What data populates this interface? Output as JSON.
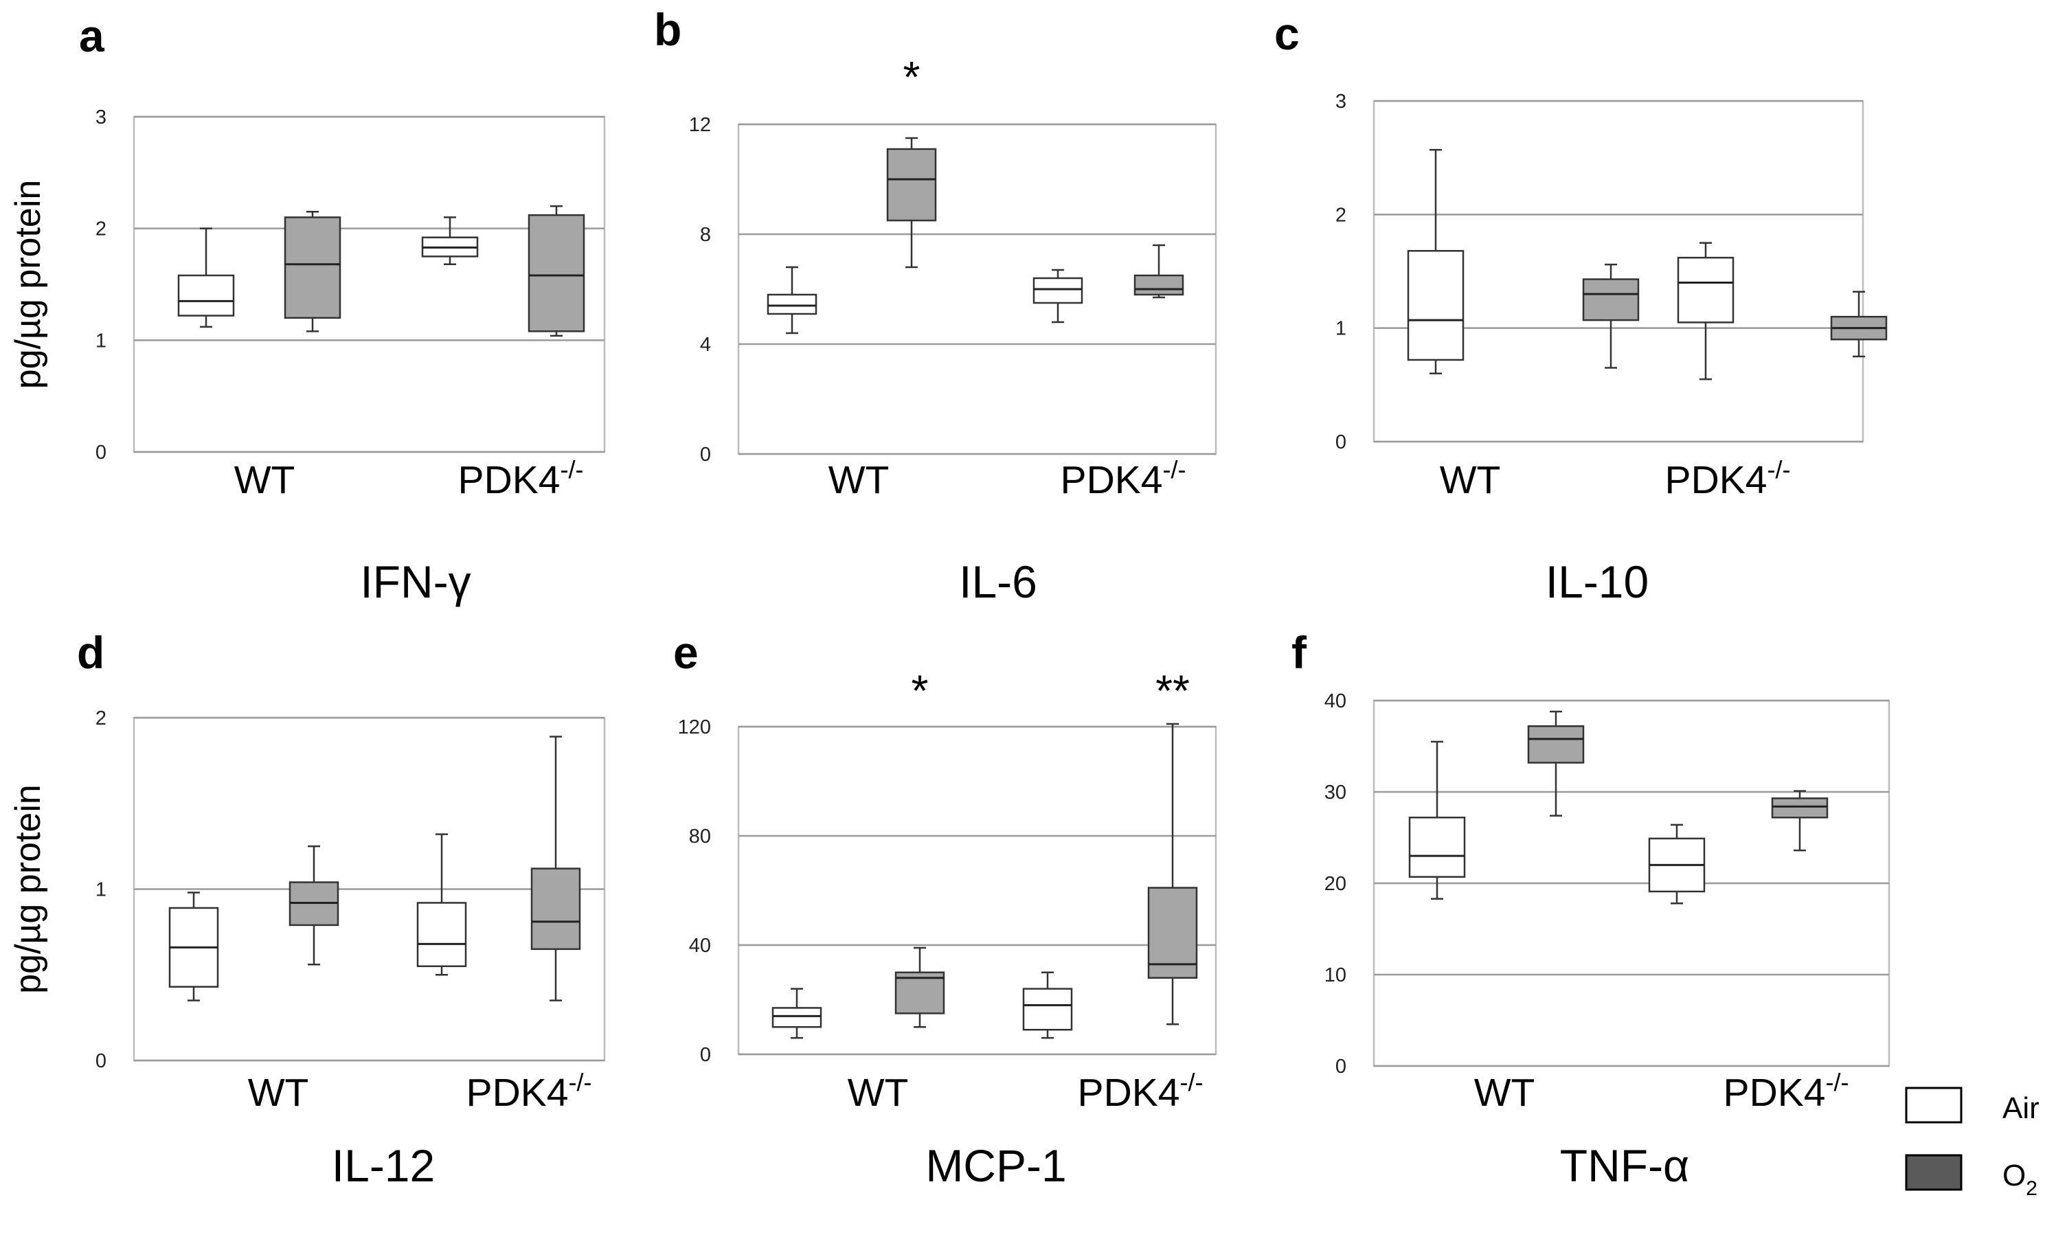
{
  "legend": [
    {
      "label": "Air",
      "color": "#ffffff"
    },
    {
      "label": "O",
      "sub": "2",
      "color": "#5a5a5a"
    }
  ],
  "box_fill_colors": {
    "Air": "#ffffff",
    "O2": "#a6a6a6"
  },
  "ylabel": "pg/µg protein",
  "chart_data": [
    {
      "type": "boxplot",
      "letter": "a",
      "title": "IFN-γ",
      "ylim": [
        0,
        3
      ],
      "yticks": [
        "0",
        "1",
        "2",
        "3"
      ],
      "categories": [
        {
          "label": "WT"
        },
        {
          "label": "PDK4",
          "sup": "-/-"
        }
      ],
      "groups": [
        "Air",
        "O2"
      ],
      "grid": true,
      "legend_position": "none",
      "boxes": [
        {
          "category": "WT",
          "group": "Air",
          "min": 1.12,
          "q1": 1.22,
          "median": 1.35,
          "q3": 1.58,
          "max": 2.0
        },
        {
          "category": "WT",
          "group": "O2",
          "min": 1.08,
          "q1": 1.2,
          "median": 1.68,
          "q3": 2.1,
          "max": 2.15
        },
        {
          "category": "PDK4-/-",
          "group": "Air",
          "min": 1.68,
          "q1": 1.75,
          "median": 1.83,
          "q3": 1.92,
          "max": 2.1
        },
        {
          "category": "PDK4-/-",
          "group": "O2",
          "min": 1.04,
          "q1": 1.08,
          "median": 1.58,
          "q3": 2.12,
          "max": 2.2
        }
      ],
      "significance": []
    },
    {
      "type": "boxplot",
      "letter": "b",
      "title": "IL-6",
      "ylim": [
        0,
        12
      ],
      "yticks": [
        "0",
        "4",
        "8",
        "12"
      ],
      "categories": [
        {
          "label": "WT"
        },
        {
          "label": "PDK4",
          "sup": "-/-"
        }
      ],
      "groups": [
        "Air",
        "O2"
      ],
      "grid": true,
      "legend_position": "none",
      "boxes": [
        {
          "category": "WT",
          "group": "Air",
          "min": 4.4,
          "q1": 5.1,
          "median": 5.4,
          "q3": 5.8,
          "max": 6.8
        },
        {
          "category": "WT",
          "group": "O2",
          "min": 6.8,
          "q1": 8.5,
          "median": 10.0,
          "q3": 11.1,
          "max": 11.5
        },
        {
          "category": "PDK4-/-",
          "group": "Air",
          "min": 4.8,
          "q1": 5.5,
          "median": 6.0,
          "q3": 6.4,
          "max": 6.7
        },
        {
          "category": "PDK4-/-",
          "group": "O2",
          "min": 5.7,
          "q1": 5.8,
          "median": 6.0,
          "q3": 6.5,
          "max": 7.6
        }
      ],
      "significance": [
        {
          "category": "WT",
          "group": "O2",
          "text": "*",
          "y": 13.8
        }
      ]
    },
    {
      "type": "boxplot",
      "letter": "c",
      "title": "IL-10",
      "ylim": [
        0,
        3
      ],
      "yticks": [
        "0",
        "1",
        "2",
        "3"
      ],
      "categories": [
        {
          "label": "WT"
        },
        {
          "label": "PDK4",
          "sup": "-/-"
        }
      ],
      "groups": [
        "Air",
        "O2"
      ],
      "grid": true,
      "legend_position": "none",
      "boxes": [
        {
          "category": "WT",
          "group": "Air",
          "min": 0.6,
          "q1": 0.72,
          "median": 1.07,
          "q3": 1.68,
          "max": 2.57
        },
        {
          "category": "WT",
          "group": "O2",
          "min": 0.65,
          "q1": 1.07,
          "median": 1.3,
          "q3": 1.43,
          "max": 1.56
        },
        {
          "category": "PDK4-/-",
          "group": "Air",
          "min": 0.55,
          "q1": 1.05,
          "median": 1.4,
          "q3": 1.62,
          "max": 1.75
        },
        {
          "category": "PDK4-/-",
          "group": "O2",
          "min": 0.75,
          "q1": 0.9,
          "median": 1.0,
          "q3": 1.1,
          "max": 1.32
        }
      ],
      "significance": []
    },
    {
      "type": "boxplot",
      "letter": "d",
      "title": "IL-12",
      "ylim": [
        0,
        2
      ],
      "yticks": [
        "0",
        "1",
        "2"
      ],
      "categories": [
        {
          "label": "WT"
        },
        {
          "label": "PDK4",
          "sup": "-/-"
        }
      ],
      "groups": [
        "Air",
        "O2"
      ],
      "grid": true,
      "legend_position": "none",
      "boxes": [
        {
          "category": "WT",
          "group": "Air",
          "min": 0.35,
          "q1": 0.43,
          "median": 0.66,
          "q3": 0.89,
          "max": 0.98
        },
        {
          "category": "WT",
          "group": "O2",
          "min": 0.56,
          "q1": 0.79,
          "median": 0.92,
          "q3": 1.04,
          "max": 1.25
        },
        {
          "category": "PDK4-/-",
          "group": "Air",
          "min": 0.5,
          "q1": 0.55,
          "median": 0.68,
          "q3": 0.92,
          "max": 1.32
        },
        {
          "category": "PDK4-/-",
          "group": "O2",
          "min": 0.35,
          "q1": 0.65,
          "median": 0.81,
          "q3": 1.12,
          "max": 1.89
        }
      ],
      "significance": []
    },
    {
      "type": "boxplot",
      "letter": "e",
      "title": "MCP-1",
      "ylim": [
        0,
        120
      ],
      "yticks": [
        "0",
        "40",
        "80",
        "120"
      ],
      "categories": [
        {
          "label": "WT"
        },
        {
          "label": "PDK4",
          "sup": "-/-"
        }
      ],
      "groups": [
        "Air",
        "O2"
      ],
      "grid": true,
      "legend_position": "none",
      "boxes": [
        {
          "category": "WT",
          "group": "Air",
          "min": 6,
          "q1": 10,
          "median": 14,
          "q3": 17,
          "max": 24
        },
        {
          "category": "WT",
          "group": "O2",
          "min": 10,
          "q1": 15,
          "median": 28,
          "q3": 30,
          "max": 39
        },
        {
          "category": "PDK4-/-",
          "group": "Air",
          "min": 6,
          "q1": 9,
          "median": 18,
          "q3": 24,
          "max": 30
        },
        {
          "category": "PDK4-/-",
          "group": "O2",
          "min": 11,
          "q1": 28,
          "median": 33,
          "q3": 61,
          "max": 121
        }
      ],
      "significance": [
        {
          "category": "WT",
          "group": "O2",
          "text": "*",
          "y": 134
        },
        {
          "category": "PDK4-/-",
          "group": "O2",
          "text": "**",
          "y": 134
        }
      ]
    },
    {
      "type": "boxplot",
      "letter": "f",
      "title": "TNF-α",
      "ylim": [
        0,
        40
      ],
      "yticks": [
        "0",
        "10",
        "20",
        "30",
        "40"
      ],
      "categories": [
        {
          "label": "WT"
        },
        {
          "label": "PDK4",
          "sup": "-/-"
        }
      ],
      "groups": [
        "Air",
        "O2"
      ],
      "grid": true,
      "legend_position": "bottom-right",
      "boxes": [
        {
          "category": "WT",
          "group": "Air",
          "min": 18.3,
          "q1": 20.7,
          "median": 23.0,
          "q3": 27.2,
          "max": 35.5
        },
        {
          "category": "WT",
          "group": "O2",
          "min": 27.4,
          "q1": 33.2,
          "median": 35.8,
          "q3": 37.2,
          "max": 38.8
        },
        {
          "category": "PDK4-/-",
          "group": "Air",
          "min": 17.8,
          "q1": 19.1,
          "median": 22.0,
          "q3": 24.9,
          "max": 26.4
        },
        {
          "category": "PDK4-/-",
          "group": "O2",
          "min": 23.6,
          "q1": 27.2,
          "median": 28.4,
          "q3": 29.3,
          "max": 30.1
        }
      ],
      "significance": []
    }
  ]
}
